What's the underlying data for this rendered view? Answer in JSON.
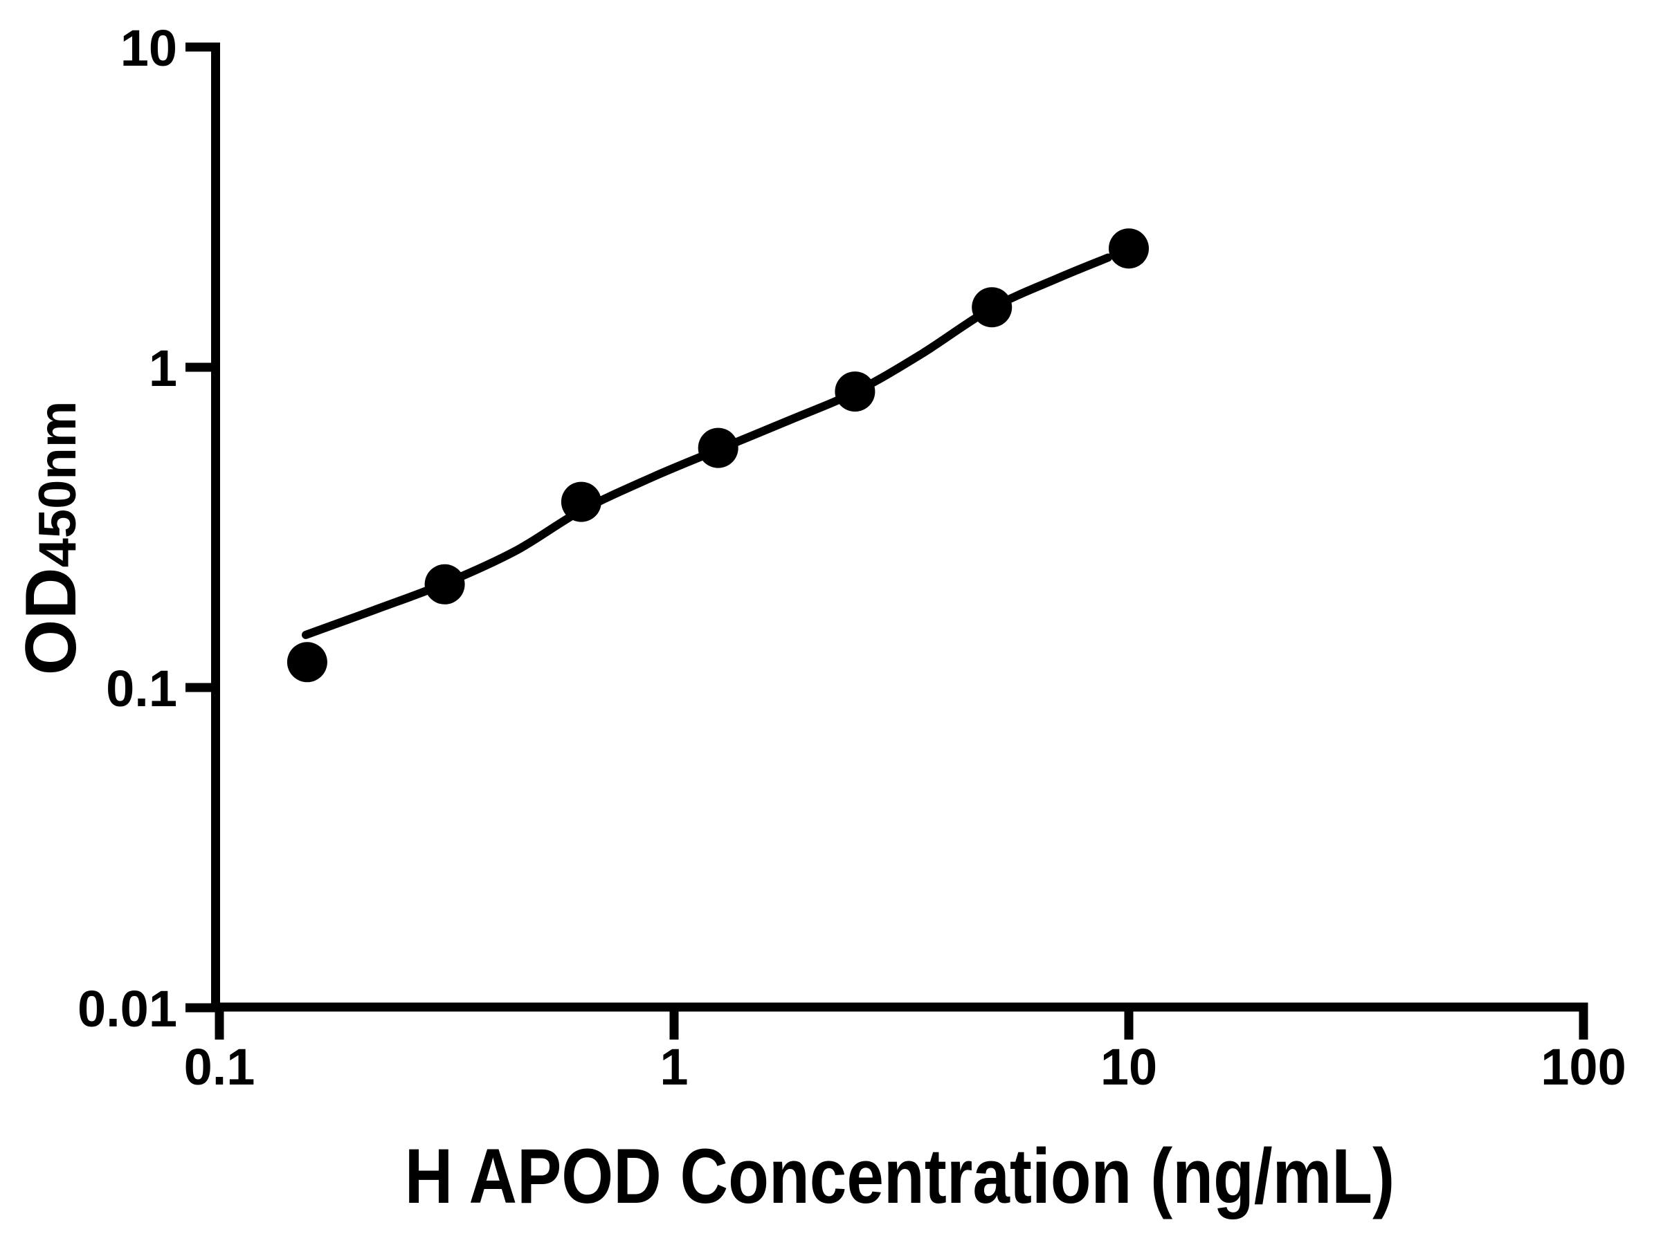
{
  "figure": {
    "background_color": "#ffffff",
    "ink_color": "#000000"
  },
  "chart_data": {
    "type": "scatter",
    "title": "",
    "xlabel": "H APOD Concentration (ng/mL)",
    "ylabel_main": "OD",
    "ylabel_sub": "450nm",
    "x_scale": "log10",
    "y_scale": "log10",
    "xlim": [
      0.1,
      100
    ],
    "ylim": [
      0.01,
      10
    ],
    "grid": false,
    "legend": "none",
    "x_ticks": [
      {
        "value": 0.1,
        "label": "0.1"
      },
      {
        "value": 1,
        "label": "1"
      },
      {
        "value": 10,
        "label": "10"
      },
      {
        "value": 100,
        "label": "100"
      }
    ],
    "y_ticks": [
      {
        "value": 0.01,
        "label": "0.01"
      },
      {
        "value": 0.1,
        "label": "0.1"
      },
      {
        "value": 1,
        "label": "1"
      },
      {
        "value": 10,
        "label": "10"
      }
    ],
    "series": [
      {
        "marker": "filled-circle",
        "color": "#000000",
        "points": [
          {
            "x": 0.156,
            "y": 0.12
          },
          {
            "x": 0.313,
            "y": 0.21
          },
          {
            "x": 0.625,
            "y": 0.38
          },
          {
            "x": 1.25,
            "y": 0.56
          },
          {
            "x": 2.5,
            "y": 0.84
          },
          {
            "x": 5,
            "y": 1.54
          },
          {
            "x": 10,
            "y": 2.35
          }
        ]
      }
    ],
    "fit_curve": {
      "color": "#000000",
      "samples": [
        [
          0.155,
          0.146
        ],
        [
          0.22,
          0.175
        ],
        [
          0.315,
          0.212
        ],
        [
          0.45,
          0.268
        ],
        [
          0.625,
          0.357
        ],
        [
          0.9,
          0.455
        ],
        [
          1.25,
          0.553
        ],
        [
          1.8,
          0.685
        ],
        [
          2.5,
          0.836
        ],
        [
          3.5,
          1.1
        ],
        [
          5.0,
          1.53
        ],
        [
          7.0,
          1.9
        ],
        [
          9.0,
          2.2
        ]
      ]
    }
  }
}
